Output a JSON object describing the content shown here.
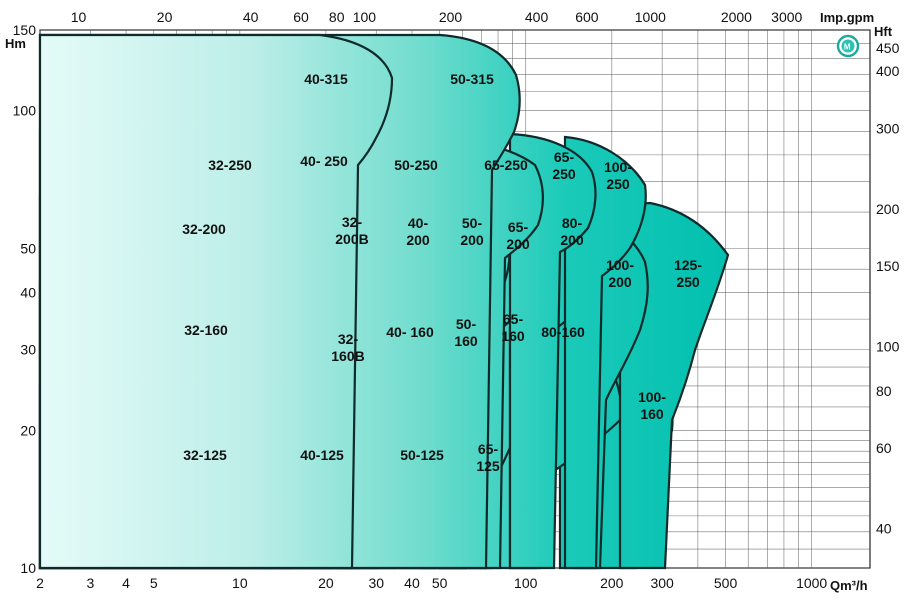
{
  "chart_data": {
    "type": "area",
    "title": "",
    "x_axis": {
      "unit_label": "Qm³/h",
      "scale": "log",
      "range": [
        2,
        1600
      ],
      "ticks": [
        {
          "v": 2,
          "label": "2"
        },
        {
          "v": 3,
          "label": "3"
        },
        {
          "v": 4,
          "label": "4"
        },
        {
          "v": 5,
          "label": "5"
        },
        {
          "v": 10,
          "label": "10"
        },
        {
          "v": 20,
          "label": "20"
        },
        {
          "v": 30,
          "label": "30"
        },
        {
          "v": 40,
          "label": "40"
        },
        {
          "v": 50,
          "label": "50"
        },
        {
          "v": 100,
          "label": "100"
        },
        {
          "v": 200,
          "label": "200"
        },
        {
          "v": 300,
          "label": "300"
        },
        {
          "v": 500,
          "label": "500"
        },
        {
          "v": 1000,
          "label": "1000"
        }
      ]
    },
    "x_axis_top": {
      "unit_label": "Imp.gpm",
      "scale": "log",
      "ticks": [
        {
          "v": 10,
          "label": "10"
        },
        {
          "v": 20,
          "label": "20"
        },
        {
          "v": 40,
          "label": "40"
        },
        {
          "v": 60,
          "label": "60"
        },
        {
          "v": 80,
          "label": "80"
        },
        {
          "v": 100,
          "label": "100"
        },
        {
          "v": 200,
          "label": "200"
        },
        {
          "v": 400,
          "label": "400"
        },
        {
          "v": 600,
          "label": "600"
        },
        {
          "v": 1000,
          "label": "1000"
        },
        {
          "v": 2000,
          "label": "2000"
        },
        {
          "v": 3000,
          "label": "3000"
        }
      ]
    },
    "y_axis": {
      "unit_label": "Hm",
      "scale": "log",
      "range": [
        10,
        150
      ],
      "ticks": [
        {
          "v": 10,
          "label": "10"
        },
        {
          "v": 20,
          "label": "20"
        },
        {
          "v": 30,
          "label": "30"
        },
        {
          "v": 40,
          "label": "40"
        },
        {
          "v": 50,
          "label": "50"
        },
        {
          "v": 100,
          "label": "100"
        },
        {
          "v": 150,
          "label": "150"
        }
      ]
    },
    "y_axis_right": {
      "unit_label": "Hft",
      "scale": "log",
      "ticks": [
        {
          "v": 40,
          "label": "40"
        },
        {
          "v": 60,
          "label": "60"
        },
        {
          "v": 80,
          "label": "80"
        },
        {
          "v": 100,
          "label": "100"
        },
        {
          "v": 150,
          "label": "150"
        },
        {
          "v": 200,
          "label": "200"
        },
        {
          "v": 300,
          "label": "300"
        },
        {
          "v": 400,
          "label": "400"
        },
        {
          "v": 450,
          "label": "450"
        }
      ]
    },
    "grid": true,
    "series": [
      {
        "name": "32-125",
        "q": [
          2,
          40
        ],
        "h": [
          10,
          25
        ]
      },
      {
        "name": "40-125",
        "q": [
          15,
          60
        ],
        "h": [
          10,
          22
        ]
      },
      {
        "name": "50-125",
        "q": [
          25,
          95
        ],
        "h": [
          10,
          21
        ]
      },
      {
        "name": "65-125",
        "q": [
          40,
          105
        ],
        "h": [
          10,
          20
        ]
      },
      {
        "name": "32-160",
        "q": [
          2,
          45
        ],
        "h": [
          17,
          42
        ]
      },
      {
        "name": "32-160B",
        "q": [
          12,
          55
        ],
        "h": [
          18,
          37
        ]
      },
      {
        "name": "40-160",
        "q": [
          25,
          80
        ],
        "h": [
          16,
          37
        ]
      },
      {
        "name": "50-160",
        "q": [
          45,
          110
        ],
        "h": [
          16,
          36
        ]
      },
      {
        "name": "65-160",
        "q": [
          60,
          140
        ],
        "h": [
          14,
          36
        ]
      },
      {
        "name": "80-160",
        "q": [
          70,
          220
        ],
        "h": [
          13,
          41
        ]
      },
      {
        "name": "100-160",
        "q": [
          150,
          360
        ],
        "h": [
          12,
          41
        ]
      },
      {
        "name": "32-200",
        "q": [
          2,
          40
        ],
        "h": [
          34,
          66
        ]
      },
      {
        "name": "32-200B",
        "q": [
          15,
          60
        ],
        "h": [
          34,
          66
        ]
      },
      {
        "name": "40-200",
        "q": [
          30,
          85
        ],
        "h": [
          32,
          64
        ]
      },
      {
        "name": "50-200",
        "q": [
          40,
          105
        ],
        "h": [
          30,
          64
        ]
      },
      {
        "name": "65-200",
        "q": [
          55,
          140
        ],
        "h": [
          27,
          64
        ]
      },
      {
        "name": "80-200",
        "q": [
          90,
          210
        ],
        "h": [
          26,
          66
        ]
      },
      {
        "name": "100-200",
        "q": [
          130,
          300
        ],
        "h": [
          24,
          66
        ]
      },
      {
        "name": "125-250",
        "q": [
          200,
          600
        ],
        "h": [
          20,
          72
        ]
      },
      {
        "name": "32-250",
        "q": [
          2,
          40
        ],
        "h": [
          66,
          92
        ]
      },
      {
        "name": "40-250",
        "q": [
          15,
          60
        ],
        "h": [
          62,
          92
        ]
      },
      {
        "name": "50-250",
        "q": [
          35,
          110
        ],
        "h": [
          55,
          92
        ]
      },
      {
        "name": "65-250",
        "q": [
          70,
          160
        ],
        "h": [
          52,
          88
        ]
      },
      {
        "name": "65-250 (2)",
        "q": [
          90,
          240
        ],
        "h": [
          50,
          88
        ]
      },
      {
        "name": "100-250",
        "q": [
          120,
          330
        ],
        "h": [
          48,
          88
        ]
      },
      {
        "name": "40-315",
        "q": [
          2,
          55
        ],
        "h": [
          90,
          145
        ]
      },
      {
        "name": "50-315",
        "q": [
          15,
          130
        ],
        "h": [
          88,
          145
        ]
      }
    ],
    "zone_labels": [
      {
        "id": "32-125",
        "lines": [
          "32-125"
        ]
      },
      {
        "id": "40-125",
        "lines": [
          "40-125"
        ]
      },
      {
        "id": "50-125",
        "lines": [
          "50-125"
        ]
      },
      {
        "id": "65-125",
        "lines": [
          "65-",
          "125"
        ]
      },
      {
        "id": "32-160",
        "lines": [
          "32-160"
        ]
      },
      {
        "id": "32-160B",
        "lines": [
          "32-",
          "160B"
        ]
      },
      {
        "id": "40-160",
        "lines": [
          "40- 160"
        ]
      },
      {
        "id": "50-160",
        "lines": [
          "50-",
          "160"
        ]
      },
      {
        "id": "65-160",
        "lines": [
          "65-",
          "160"
        ]
      },
      {
        "id": "80-160",
        "lines": [
          "80-160"
        ]
      },
      {
        "id": "100-160",
        "lines": [
          "100-",
          "160"
        ]
      },
      {
        "id": "32-200",
        "lines": [
          "32-200"
        ]
      },
      {
        "id": "32-200B",
        "lines": [
          "32-",
          "200B"
        ]
      },
      {
        "id": "40-200",
        "lines": [
          "40-",
          "200"
        ]
      },
      {
        "id": "50-200",
        "lines": [
          "50-",
          "200"
        ]
      },
      {
        "id": "65-200",
        "lines": [
          "65-",
          "200"
        ]
      },
      {
        "id": "80-200",
        "lines": [
          "80-",
          "200"
        ]
      },
      {
        "id": "100-200",
        "lines": [
          "100-",
          "200"
        ]
      },
      {
        "id": "125-250",
        "lines": [
          "125-",
          "250"
        ]
      },
      {
        "id": "32-250",
        "lines": [
          "32-250"
        ]
      },
      {
        "id": "40-250",
        "lines": [
          "40- 250"
        ]
      },
      {
        "id": "50-250",
        "lines": [
          "50-250"
        ]
      },
      {
        "id": "65-250",
        "lines": [
          "65-250"
        ]
      },
      {
        "id": "65-250 (2)",
        "lines": [
          "65-",
          "250"
        ]
      },
      {
        "id": "100-250",
        "lines": [
          "100-",
          "250"
        ]
      },
      {
        "id": "40-315",
        "lines": [
          "40-315"
        ]
      },
      {
        "id": "50-315",
        "lines": [
          "50-315"
        ]
      }
    ],
    "colors": {
      "light": "#e4fbf8",
      "mid": "#8fe3d8",
      "dark": "#00c4b4",
      "outline": "#0f2a2a"
    },
    "logo_icon": "m-circle-logo-icon"
  }
}
